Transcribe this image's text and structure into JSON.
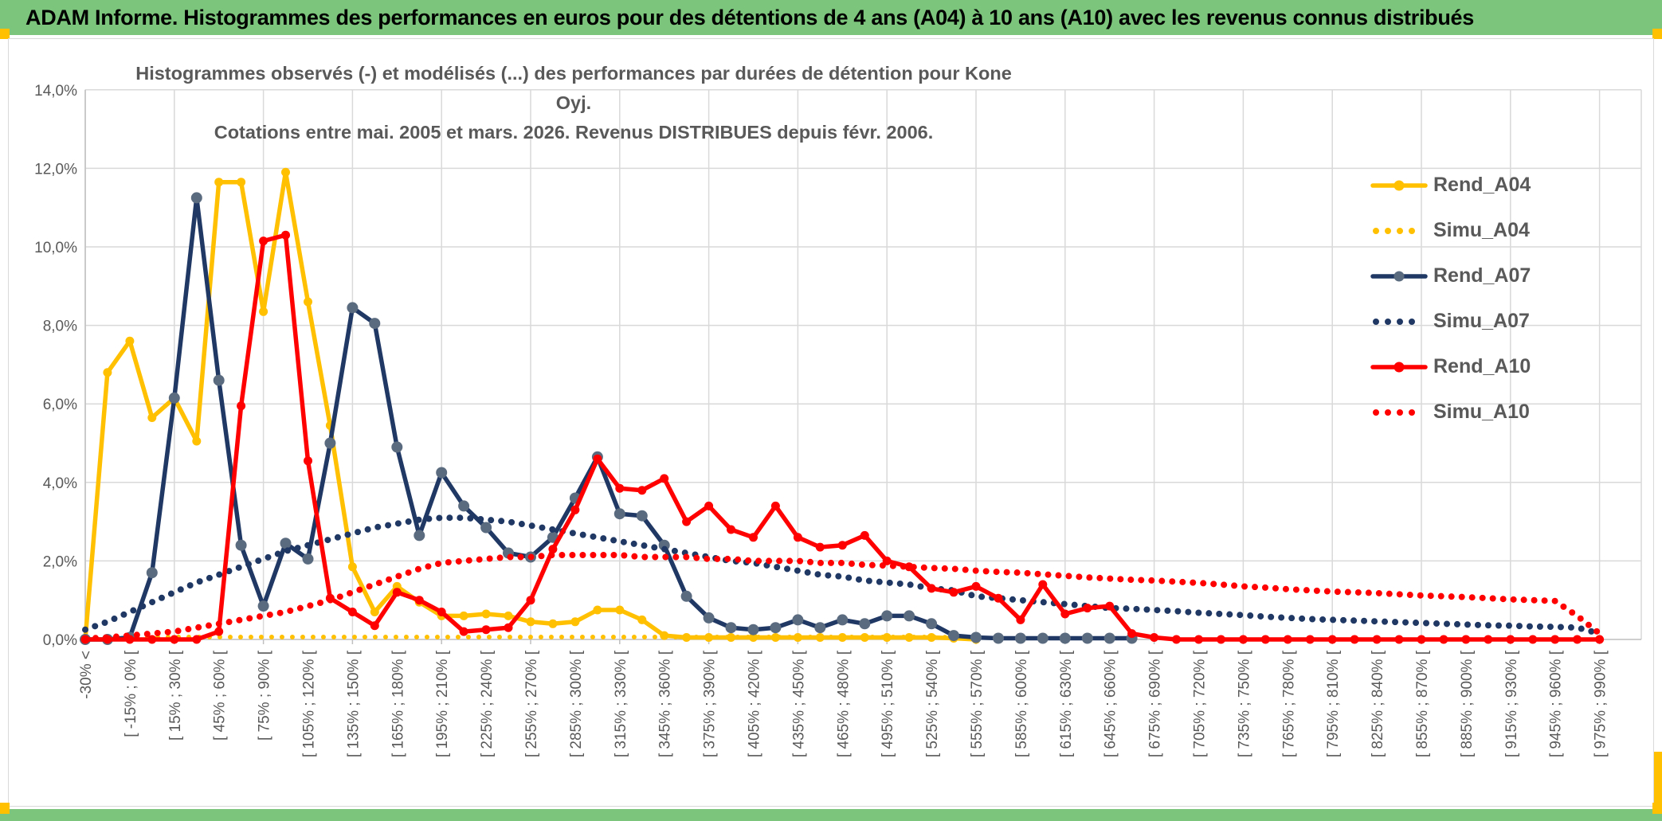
{
  "header": {
    "title": "ADAM Informe. Histogrammes des performances en euros pour des détentions de 4 ans (A04) à 10 ans (A10) avec les revenus connus distribués"
  },
  "colors": {
    "banner_green": "#7CC57C",
    "accent_yellow": "#FFC000",
    "gold": "#FFC000",
    "navy": "#1F3864",
    "navy_marker": "#5B6B7F",
    "red": "#FF0000",
    "grid": "#D9D9D9",
    "axis": "#BFBFBF",
    "text_gray": "#595959"
  },
  "chart_data": {
    "type": "line",
    "title_line1": "Histogrammes observés (-) et modélisés (...) des performances par durées de détention pour Kone Oyj.",
    "title_line2": "Cotations entre mai. 2005 et mars. 2026. Revenus DISTRIBUES depuis févr. 2006.",
    "ylabel": "",
    "xlabel": "",
    "ylim": [
      0,
      14
    ],
    "grid": "horizontal every 2%, vertical every 4 bins",
    "legend_position": "right-inside",
    "n_bins": 69,
    "bin_width_pct": 15,
    "x_labels_every": 2,
    "y_tick_labels": [
      "0,0%",
      "2,0%",
      "4,0%",
      "6,0%",
      "8,0%",
      "10,0%",
      "12,0%",
      "14,0%"
    ],
    "x_tick_labels": [
      "-30% <",
      "[ -15% ; 0% [",
      "[ 15% ; 30% [",
      "[ 45% ; 60% [",
      "[ 75% ; 90% [",
      "[ 105% ; 120% [",
      "[ 135% ; 150% [",
      "[ 165% ; 180% [",
      "[ 195% ; 210% [",
      "[ 225% ; 240% [",
      "[ 255% ; 270% [",
      "[ 285% ; 300% [",
      "[ 315% ; 330% [",
      "[ 345% ; 360% [",
      "[ 375% ; 390% [",
      "[ 405% ; 420% [",
      "[ 435% ; 450% [",
      "[ 465% ; 480% [",
      "[ 495% ; 510% [",
      "[ 525% ; 540% [",
      "[ 555% ; 570% [",
      "[ 585% ; 600% [",
      "[ 615% ; 630% [",
      "[ 645% ; 660% [",
      "[ 675% ; 690% [",
      "[ 705% ; 720% [",
      "[ 735% ; 750% [",
      "[ 765% ; 780% [",
      "[ 795% ; 810% [",
      "[ 825% ; 840% [",
      "[ 855% ; 870% [",
      "[ 885% ; 900% [",
      "[ 915% ; 930% [",
      "[ 945% ; 960% [",
      "[ 975% ; 990% ["
    ],
    "series": [
      {
        "name": "Rend_A04",
        "style": "solid",
        "color": "#FFC000",
        "marker_color": "#FFC000",
        "values": [
          0,
          6.8,
          7.6,
          5.65,
          6.15,
          5.05,
          11.65,
          11.65,
          8.35,
          11.9,
          8.6,
          5.45,
          1.85,
          0.7,
          1.35,
          0.95,
          0.6,
          0.6,
          0.65,
          0.6,
          0.45,
          0.4,
          0.45,
          0.75,
          0.75,
          0.5,
          0.1,
          0.05,
          0.05,
          0.05,
          0.05,
          0.05,
          0.05,
          0.05,
          0.05,
          0.05,
          0.05,
          0.05,
          0.05,
          0.03,
          0,
          null,
          null,
          null,
          null,
          null,
          null,
          null,
          null,
          null,
          null,
          null,
          null,
          null,
          null,
          null,
          null,
          null,
          null,
          null,
          null,
          null,
          null,
          null,
          null,
          null,
          null,
          null,
          null
        ]
      },
      {
        "name": "Simu_A04",
        "style": "dotted",
        "color": "#FFC000",
        "values": [
          0.02,
          0.04,
          0.06,
          0.06,
          0.06,
          0.06,
          0.06,
          0.06,
          0.06,
          0.06,
          0.06,
          0.06,
          0.06,
          0.06,
          0.06,
          0.06,
          0.06,
          0.06,
          0.06,
          0.06,
          0.06,
          0.06,
          0.06,
          0.06,
          0.06,
          0.06,
          0.06,
          0.06,
          0.06,
          0.06,
          0.06,
          0.06,
          0.06,
          0.06,
          0.06,
          0.06,
          0.06,
          0.06,
          0.06,
          0.05,
          0.03,
          null,
          null,
          null,
          null,
          null,
          null,
          null,
          null,
          null,
          null,
          null,
          null,
          null,
          null,
          null,
          null,
          null,
          null,
          null,
          null,
          null,
          null,
          null,
          null,
          null,
          null,
          null,
          null
        ]
      },
      {
        "name": "Rend_A07",
        "style": "solid",
        "color": "#1F3864",
        "marker_color": "#5B6B7F",
        "values": [
          0,
          0,
          0.05,
          1.7,
          6.15,
          11.25,
          6.6,
          2.4,
          0.85,
          2.45,
          2.05,
          5.0,
          8.45,
          8.05,
          4.9,
          2.65,
          4.25,
          3.4,
          2.85,
          2.2,
          2.1,
          2.6,
          3.6,
          4.65,
          3.2,
          3.15,
          2.4,
          1.1,
          0.55,
          0.3,
          0.25,
          0.3,
          0.5,
          0.3,
          0.5,
          0.4,
          0.6,
          0.6,
          0.4,
          0.1,
          0.05,
          0.03,
          0.03,
          0.03,
          0.03,
          0.03,
          0.03,
          0.03,
          null,
          null,
          null,
          null,
          null,
          null,
          null,
          null,
          null,
          null,
          null,
          null,
          null,
          null,
          null,
          null,
          null,
          null,
          null,
          null,
          null
        ]
      },
      {
        "name": "Simu_A07",
        "style": "dotted",
        "color": "#1F3864",
        "values": [
          0.25,
          0.45,
          0.7,
          0.95,
          1.2,
          1.45,
          1.65,
          1.85,
          2.05,
          2.25,
          2.4,
          2.55,
          2.7,
          2.85,
          2.95,
          3.05,
          3.1,
          3.1,
          3.05,
          3.0,
          2.9,
          2.8,
          2.7,
          2.6,
          2.5,
          2.4,
          2.3,
          2.2,
          2.1,
          2.0,
          1.95,
          1.85,
          1.75,
          1.65,
          1.6,
          1.5,
          1.45,
          1.4,
          1.3,
          1.25,
          1.1,
          1.05,
          1.0,
          0.95,
          0.9,
          0.85,
          0.8,
          0.78,
          0.75,
          0.72,
          0.68,
          0.65,
          0.62,
          0.58,
          0.55,
          0.52,
          0.5,
          0.48,
          0.46,
          0.44,
          0.42,
          0.4,
          0.38,
          0.36,
          0.35,
          0.33,
          0.32,
          0.3,
          0.15
        ]
      },
      {
        "name": "Rend_A10",
        "style": "solid",
        "color": "#FF0000",
        "marker_color": "#FF0000",
        "values": [
          0,
          0,
          0,
          0,
          0,
          0,
          0.2,
          5.95,
          10.15,
          10.3,
          4.55,
          1.05,
          0.7,
          0.35,
          1.2,
          1.0,
          0.7,
          0.2,
          0.25,
          0.3,
          1.0,
          2.3,
          3.3,
          4.6,
          3.85,
          3.8,
          4.1,
          3.0,
          3.4,
          2.8,
          2.6,
          3.4,
          2.6,
          2.35,
          2.4,
          2.65,
          2.0,
          1.85,
          1.3,
          1.2,
          1.35,
          1.05,
          0.5,
          1.4,
          0.65,
          0.8,
          0.85,
          0.15,
          0.05,
          0,
          0,
          0,
          0,
          0,
          0,
          0,
          0,
          0,
          0,
          0,
          0,
          0,
          0,
          0,
          0,
          0,
          0,
          0,
          0
        ]
      },
      {
        "name": "Simu_A10",
        "style": "dotted",
        "color": "#FF0000",
        "values": [
          0.02,
          0.05,
          0.1,
          0.15,
          0.2,
          0.3,
          0.4,
          0.5,
          0.6,
          0.7,
          0.85,
          1.0,
          1.2,
          1.4,
          1.6,
          1.8,
          1.95,
          2.0,
          2.05,
          2.1,
          2.1,
          2.15,
          2.15,
          2.15,
          2.15,
          2.1,
          2.1,
          2.1,
          2.05,
          2.05,
          2.0,
          2.0,
          2.0,
          1.95,
          1.95,
          1.9,
          1.88,
          1.85,
          1.82,
          1.8,
          1.75,
          1.72,
          1.7,
          1.66,
          1.62,
          1.58,
          1.55,
          1.52,
          1.5,
          1.47,
          1.44,
          1.4,
          1.35,
          1.32,
          1.28,
          1.25,
          1.22,
          1.2,
          1.18,
          1.15,
          1.12,
          1.1,
          1.08,
          1.05,
          1.02,
          1.0,
          0.98,
          0.6,
          0.15
        ]
      }
    ]
  }
}
